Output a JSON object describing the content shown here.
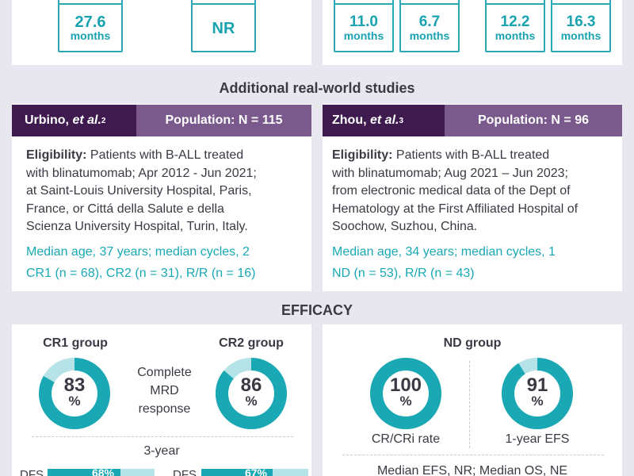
{
  "top_stats": [
    {
      "num": "27.6",
      "unit": "months"
    },
    {
      "num": "NR",
      "unit": ""
    },
    {
      "num": "11.0",
      "unit": "months"
    },
    {
      "num": "6.7",
      "unit": "months"
    },
    {
      "num": "12.2",
      "unit": "months"
    },
    {
      "num": "16.3",
      "unit": "months"
    }
  ],
  "section_title": "Additional real-world studies",
  "studies": [
    {
      "author": "Urbino,",
      "author_etal": "et al.",
      "ref": "2",
      "population": "Population: N = 115",
      "eligibility_label": "Eligibility:",
      "eligibility_lines": [
        " Patients with B-ALL treated",
        "with blinatumomab; Apr 2012 - Jun 2021;",
        "at Saint-Louis University Hospital, Paris,",
        "France, or Cittá della Salute e della",
        "Scienza University Hospital, Turin, Italy."
      ],
      "median": "Median age, 37 years; median cycles, 2",
      "groups": "CR1 (n = 68), CR2 (n = 31), R/R (n = 16)"
    },
    {
      "author": "Zhou,",
      "author_etal": "et al.",
      "ref": "3",
      "population": "Population: N = 96",
      "eligibility_label": "Eligibility:",
      "eligibility_lines": [
        " Patients with B-ALL treated",
        "with blinatumomab; Aug 2021 – Jun 2023;",
        "from electronic medical data of the Dept of",
        "Hematology at the First Affiliated Hospital of",
        "Soochow, Suzhou, China."
      ],
      "median": "Median age, 34 years; median cycles, 1",
      "groups": "ND (n = 53), R/R (n = 43)"
    }
  ],
  "efficacy_title": "EFFICACY",
  "left_panel": {
    "cr1_label": "CR1 group",
    "cr2_label": "CR2 group",
    "cr1_value": "83",
    "cr2_value": "86",
    "percent": "%",
    "middle_caption": [
      "Complete",
      "MRD",
      "response"
    ],
    "bottom_caption": "3-year",
    "bar_label": "DFS",
    "bar1_value": "68%",
    "bar2_value": "67%"
  },
  "right_panel": {
    "nd_label": "ND group",
    "cr_value": "100",
    "efs_value": "91",
    "percent": "%",
    "cr_caption": "CR/CRi rate",
    "efs_caption": "1-year EFS",
    "bottom_caption": "Median EFS, NR; Median OS, NE"
  },
  "colors": {
    "teal": "#1aa8b4",
    "teal_light": "#b5e3e8",
    "purple_dark": "#3e1a4f",
    "purple_mid": "#7a5a8c",
    "bg": "#e8e6ee"
  }
}
